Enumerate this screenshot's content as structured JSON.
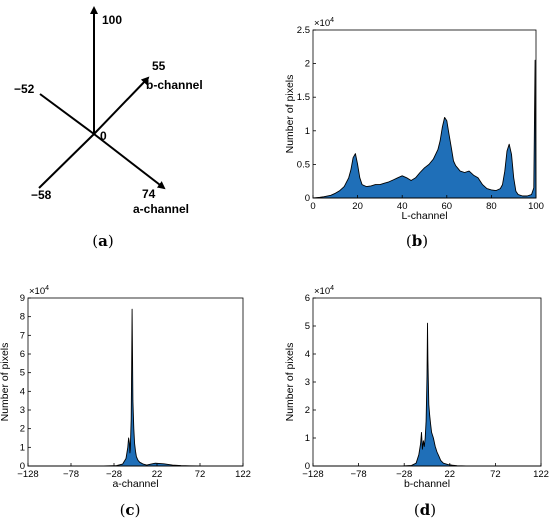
{
  "colors": {
    "fill": "#1f6fb8",
    "line": "#000000"
  },
  "diagram": {
    "values": {
      "up": "100",
      "b_pos": "55",
      "l_neg": "−52",
      "center": "0",
      "ll_neg": "−58",
      "a_pos": "74"
    },
    "labels": {
      "b": "b-channel",
      "a": "a-channel"
    }
  },
  "captions": {
    "a": "a",
    "b": "b",
    "c": "c",
    "d": "d"
  },
  "chart_data": [
    {
      "type": "area",
      "xlabel": "L-channel",
      "ylabel": "Number of pixels",
      "exponent": "4",
      "xlim": [
        0,
        100
      ],
      "ylim": [
        0,
        2.5
      ],
      "xticks": [
        "0",
        "20",
        "40",
        "60",
        "80",
        "100"
      ],
      "yticks": [
        "0",
        "0.5",
        "1",
        "1.5",
        "2",
        "2.5"
      ],
      "x": [
        0,
        3,
        5,
        8,
        10,
        12,
        14,
        16,
        17,
        18,
        19,
        20,
        21,
        22,
        24,
        26,
        28,
        30,
        32,
        34,
        36,
        38,
        40,
        42,
        44,
        46,
        48,
        50,
        52,
        54,
        56,
        57,
        58,
        59,
        60,
        61,
        62,
        63,
        64,
        65,
        66,
        68,
        70,
        72,
        74,
        76,
        78,
        80,
        82,
        84,
        85,
        86,
        87,
        88,
        89,
        90,
        91,
        92,
        94,
        96,
        98,
        99,
        99.6,
        100
      ],
      "y": [
        0,
        0.01,
        0.02,
        0.04,
        0.07,
        0.11,
        0.17,
        0.3,
        0.42,
        0.6,
        0.66,
        0.5,
        0.3,
        0.2,
        0.17,
        0.18,
        0.2,
        0.2,
        0.22,
        0.24,
        0.27,
        0.3,
        0.33,
        0.3,
        0.26,
        0.3,
        0.38,
        0.45,
        0.5,
        0.58,
        0.72,
        0.85,
        1.05,
        1.2,
        1.15,
        0.95,
        0.75,
        0.55,
        0.48,
        0.44,
        0.4,
        0.38,
        0.4,
        0.34,
        0.3,
        0.2,
        0.14,
        0.12,
        0.11,
        0.14,
        0.2,
        0.4,
        0.7,
        0.8,
        0.65,
        0.3,
        0.1,
        0.05,
        0.03,
        0.03,
        0.05,
        0.15,
        2.05,
        0
      ]
    },
    {
      "type": "area",
      "xlabel": "a-channel",
      "ylabel": "Number of pixels",
      "exponent": "4",
      "xlim": [
        -128,
        122
      ],
      "ylim": [
        0,
        9
      ],
      "xticks": [
        "−128",
        "−78",
        "−28",
        "22",
        "72",
        "122"
      ],
      "yticks": [
        "0",
        "1",
        "2",
        "3",
        "4",
        "5",
        "6",
        "7",
        "8",
        "9"
      ],
      "x": [
        -128,
        -40,
        -25,
        -18,
        -14,
        -12,
        -11,
        -10,
        -9.5,
        -9,
        -8,
        -7.5,
        -7,
        -6.5,
        -6,
        -5,
        -4,
        -3,
        -2,
        0,
        2,
        4,
        6,
        10,
        15,
        20,
        30,
        40,
        50,
        60,
        72,
        122
      ],
      "y": [
        0,
        0,
        0.02,
        0.1,
        0.4,
        1.0,
        1.5,
        1.2,
        0.7,
        0.9,
        2.5,
        5.0,
        8.4,
        6.0,
        3.5,
        2.0,
        1.2,
        0.8,
        0.5,
        0.3,
        0.2,
        0.15,
        0.1,
        0.05,
        0.1,
        0.15,
        0.12,
        0.05,
        0.02,
        0.01,
        0,
        0
      ]
    },
    {
      "type": "area",
      "xlabel": "b-channel",
      "ylabel": "Number of pixels",
      "exponent": "4",
      "xlim": [
        -128,
        122
      ],
      "ylim": [
        0,
        6
      ],
      "xticks": [
        "−128",
        "−78",
        "−28",
        "22",
        "72",
        "122"
      ],
      "yticks": [
        "0",
        "1",
        "2",
        "3",
        "4",
        "5",
        "6"
      ],
      "x": [
        -128,
        -30,
        -20,
        -15,
        -12,
        -10,
        -9,
        -8,
        -7,
        -6,
        -5,
        -4,
        -3,
        -2.5,
        -2,
        -1,
        0,
        1,
        2,
        4,
        6,
        8,
        10,
        12,
        15,
        20,
        25,
        30,
        40,
        122
      ],
      "y": [
        0,
        0,
        0.02,
        0.1,
        0.4,
        0.8,
        1.2,
        0.6,
        0.9,
        0.7,
        1.0,
        1.6,
        3.2,
        5.1,
        3.8,
        2.2,
        1.8,
        1.5,
        1.2,
        1.0,
        0.7,
        0.5,
        0.35,
        0.2,
        0.1,
        0.05,
        0.03,
        0.01,
        0,
        0
      ]
    }
  ]
}
